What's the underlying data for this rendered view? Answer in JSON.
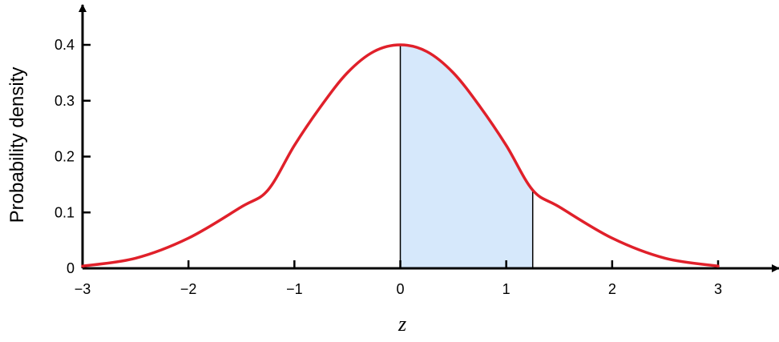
{
  "chart_data": {
    "type": "area",
    "xlabel": "z",
    "ylabel": "Probability density",
    "xlim": [
      -3,
      3
    ],
    "ylim": [
      0,
      0.4
    ],
    "x_ticks": [
      -3,
      -2,
      -1,
      0,
      1,
      2,
      3
    ],
    "x_tick_labels": [
      "−3",
      "−2",
      "−1",
      "0",
      "1",
      "2",
      "3"
    ],
    "y_ticks": [
      0,
      0.1,
      0.2,
      0.3,
      0.4
    ],
    "y_tick_labels": [
      "0",
      "0.1",
      "0.2",
      "0.3",
      "0.4"
    ],
    "curve": {
      "color": "#e0202a",
      "x": [
        -3,
        -2.5,
        -2,
        -1.5,
        -1.25,
        -1,
        -0.75,
        -0.5,
        -0.25,
        0,
        0.25,
        0.5,
        0.75,
        1,
        1.25,
        1.5,
        2,
        2.5,
        3
      ],
      "y": [
        0.004,
        0.018,
        0.054,
        0.11,
        0.14,
        0.22,
        0.29,
        0.35,
        0.388,
        0.4,
        0.388,
        0.35,
        0.29,
        0.22,
        0.14,
        0.11,
        0.054,
        0.018,
        0.004
      ]
    },
    "shaded_region": {
      "x_from": 0,
      "x_to": 1.25,
      "color": "#d6e8fb"
    },
    "grid": false,
    "legend": false
  }
}
